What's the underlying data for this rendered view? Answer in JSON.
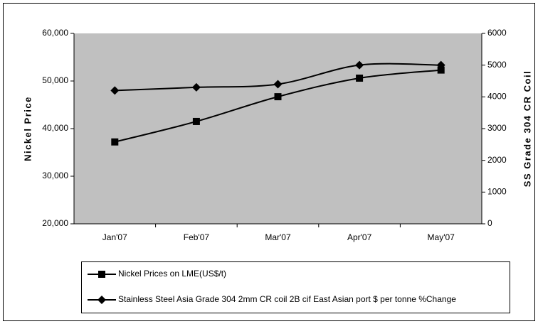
{
  "chart_data": {
    "type": "line",
    "categories": [
      "Jan'07",
      "Feb'07",
      "Mar'07",
      "Apr'07",
      "May'07"
    ],
    "ylabel": "Nickel Price",
    "y2label": "SS Grade 304 CR Coil",
    "ylim": [
      20000,
      60000
    ],
    "yticks": [
      {
        "value": 20000,
        "label": "20,000"
      },
      {
        "value": 30000,
        "label": "30,000"
      },
      {
        "value": 40000,
        "label": "40,000"
      },
      {
        "value": 50000,
        "label": "50,000"
      },
      {
        "value": 60000,
        "label": "60,000"
      }
    ],
    "y2lim": [
      0,
      6000
    ],
    "y2ticks": [
      0,
      1000,
      2000,
      3000,
      4000,
      5000,
      6000
    ],
    "series": [
      {
        "name": "Nickel Prices on LME(US$/t)",
        "color": "#000000",
        "marker": "square",
        "values": [
          37200,
          41500,
          46700,
          50600,
          52300
        ]
      },
      {
        "name": "Stainless Steel Asia Grade 304 2mm CR coil 2B cif East Asian port $ per tonne %Change",
        "color": "#000000",
        "marker": "diamond",
        "axis": "y2",
        "values": [
          4200,
          4300,
          4400,
          5000,
          5000
        ]
      }
    ],
    "plot_color": "#c0c0c0"
  }
}
